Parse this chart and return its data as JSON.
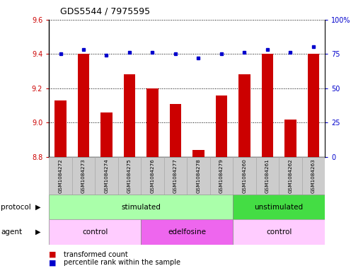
{
  "title": "GDS5544 / 7975595",
  "samples": [
    "GSM1084272",
    "GSM1084273",
    "GSM1084274",
    "GSM1084275",
    "GSM1084276",
    "GSM1084277",
    "GSM1084278",
    "GSM1084279",
    "GSM1084260",
    "GSM1084261",
    "GSM1084262",
    "GSM1084263"
  ],
  "bar_values": [
    9.13,
    9.4,
    9.06,
    9.28,
    9.2,
    9.11,
    8.84,
    9.16,
    9.28,
    9.4,
    9.02,
    9.4
  ],
  "dot_values": [
    75,
    78,
    74,
    76,
    76,
    75,
    72,
    75,
    76,
    78,
    76,
    80
  ],
  "ylim_left": [
    8.8,
    9.6
  ],
  "ylim_right": [
    0,
    100
  ],
  "yticks_left": [
    8.8,
    9.0,
    9.2,
    9.4,
    9.6
  ],
  "yticks_right": [
    0,
    25,
    50,
    75,
    100
  ],
  "bar_color": "#cc0000",
  "dot_color": "#0000cc",
  "protocol_groups": [
    {
      "label": "stimulated",
      "start": 0,
      "end": 8,
      "color": "#aaffaa"
    },
    {
      "label": "unstimulated",
      "start": 8,
      "end": 12,
      "color": "#44dd44"
    }
  ],
  "agent_groups": [
    {
      "label": "control",
      "start": 0,
      "end": 4,
      "color": "#ffccff"
    },
    {
      "label": "edelfosine",
      "start": 4,
      "end": 8,
      "color": "#ee66ee"
    },
    {
      "label": "control",
      "start": 8,
      "end": 12,
      "color": "#ffccff"
    }
  ],
  "legend_bar_label": "transformed count",
  "legend_dot_label": "percentile rank within the sample",
  "protocol_label": "protocol",
  "agent_label": "agent",
  "bg_color": "#ffffff",
  "tick_color_left": "#cc0000",
  "tick_color_right": "#0000cc",
  "box_color": "#cccccc",
  "box_edge_color": "#aaaaaa"
}
